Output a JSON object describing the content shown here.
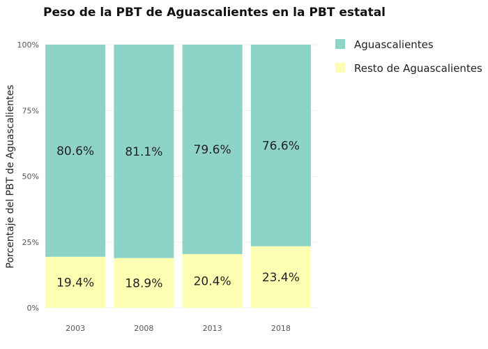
{
  "chart_data": {
    "type": "bar",
    "stacked": true,
    "title": "Peso de la PBT de Aguascalientes en la PBT estatal",
    "xlabel": "",
    "ylabel": "Porcentaje del PBT de Aguascalientes",
    "categories": [
      "2003",
      "2008",
      "2013",
      "2018"
    ],
    "ylim": [
      0,
      100
    ],
    "y_ticks": [
      0,
      25,
      50,
      75,
      100
    ],
    "y_tick_labels": [
      "0%",
      "25%",
      "50%",
      "75%",
      "100%"
    ],
    "series": [
      {
        "name": "Resto de Aguascalientes",
        "color": "#ffffb3",
        "values": [
          19.4,
          18.9,
          20.4,
          23.4
        ],
        "labels": [
          "19.4%",
          "18.9%",
          "20.4%",
          "23.4%"
        ]
      },
      {
        "name": "Aguascalientes",
        "color": "#8dd3c7",
        "values": [
          80.6,
          81.1,
          79.6,
          76.6
        ],
        "labels": [
          "80.6%",
          "81.1%",
          "79.6%",
          "76.6%"
        ]
      }
    ],
    "legend": {
      "position": "top-right",
      "order": [
        "Aguascalientes",
        "Resto de Aguascalientes"
      ]
    },
    "grid": true
  }
}
